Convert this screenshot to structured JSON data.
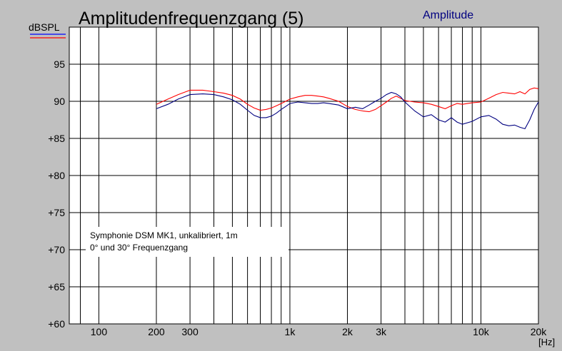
{
  "chart_data": {
    "type": "line",
    "title": "Amplitudenfrequenzgang (5)",
    "legend_label": "Amplitude",
    "ylabel": "dBSPL",
    "xlabel": "[Hz]",
    "x_scale": "log",
    "xlim": [
      70,
      20000
    ],
    "ylim": [
      60,
      100
    ],
    "y_ticks": [
      {
        "value": 95,
        "label": "95"
      },
      {
        "value": 90,
        "label": "90"
      },
      {
        "value": 85,
        "label": "+85"
      },
      {
        "value": 80,
        "label": "+80"
      },
      {
        "value": 75,
        "label": "+75"
      },
      {
        "value": 70,
        "label": "+70"
      },
      {
        "value": 65,
        "label": "+65"
      },
      {
        "value": 60,
        "label": "+60"
      }
    ],
    "x_ticks": [
      {
        "value": 100,
        "label": "100"
      },
      {
        "value": 200,
        "label": "200"
      },
      {
        "value": 300,
        "label": "300"
      },
      {
        "value": 1000,
        "label": "1k"
      },
      {
        "value": 2000,
        "label": "2k"
      },
      {
        "value": 3000,
        "label": "3k"
      },
      {
        "value": 10000,
        "label": "10k"
      },
      {
        "value": 20000,
        "label": "20k"
      }
    ],
    "x_gridlines": [
      80,
      100,
      200,
      300,
      400,
      500,
      600,
      700,
      800,
      900,
      1000,
      2000,
      3000,
      4000,
      5000,
      6000,
      7000,
      8000,
      9000,
      10000,
      20000
    ],
    "grid": true,
    "series": [
      {
        "color": "#ff0000",
        "x": [
          200,
          230,
          260,
          300,
          350,
          400,
          450,
          500,
          550,
          600,
          650,
          700,
          750,
          800,
          850,
          900,
          950,
          1000,
          1100,
          1200,
          1300,
          1400,
          1500,
          1600,
          1800,
          2000,
          2200,
          2400,
          2600,
          2800,
          3000,
          3200,
          3400,
          3600,
          3800,
          4000,
          4500,
          5000,
          5500,
          6000,
          6500,
          7000,
          7500,
          8000,
          9000,
          10000,
          11000,
          12000,
          13000,
          14000,
          15000,
          16000,
          17000,
          18000,
          19000,
          20000
        ],
        "y": [
          89.6,
          90.3,
          90.9,
          91.5,
          91.5,
          91.3,
          91.1,
          90.8,
          90.3,
          89.6,
          89.1,
          88.8,
          88.9,
          89.1,
          89.4,
          89.7,
          90.0,
          90.3,
          90.6,
          90.8,
          90.8,
          90.7,
          90.6,
          90.4,
          90.0,
          89.3,
          88.9,
          88.7,
          88.6,
          88.9,
          89.4,
          89.9,
          90.4,
          90.7,
          90.4,
          90.1,
          89.9,
          89.8,
          89.6,
          89.3,
          89.0,
          89.4,
          89.7,
          89.6,
          89.8,
          89.9,
          90.4,
          90.9,
          91.2,
          91.1,
          91.0,
          91.3,
          91.0,
          91.6,
          91.8,
          91.7
        ]
      },
      {
        "color": "#000080",
        "x": [
          200,
          230,
          260,
          300,
          350,
          400,
          450,
          500,
          550,
          600,
          650,
          700,
          750,
          800,
          850,
          900,
          950,
          1000,
          1100,
          1200,
          1300,
          1400,
          1500,
          1600,
          1800,
          2000,
          2200,
          2400,
          2600,
          2800,
          3000,
          3200,
          3400,
          3600,
          3800,
          4000,
          4500,
          5000,
          5500,
          6000,
          6500,
          7000,
          7500,
          8000,
          9000,
          10000,
          11000,
          12000,
          13000,
          14000,
          15000,
          16000,
          17000,
          18000,
          19000,
          20000
        ],
        "y": [
          89.0,
          89.6,
          90.3,
          90.9,
          91.0,
          90.9,
          90.6,
          90.2,
          89.6,
          88.8,
          88.1,
          87.8,
          87.8,
          88.0,
          88.4,
          88.9,
          89.3,
          89.7,
          89.9,
          89.8,
          89.7,
          89.7,
          89.8,
          89.7,
          89.5,
          89.0,
          89.2,
          89.0,
          89.5,
          90.0,
          90.4,
          90.9,
          91.2,
          91.0,
          90.6,
          89.9,
          88.7,
          87.9,
          88.2,
          87.5,
          87.2,
          87.8,
          87.2,
          86.9,
          87.3,
          87.9,
          88.1,
          87.6,
          86.9,
          86.7,
          86.8,
          86.5,
          86.3,
          87.5,
          88.9,
          89.9
        ]
      }
    ],
    "legend_swatches": [
      "#0000ff",
      "#ff0000"
    ],
    "annotation": {
      "line1": "Symphonie DSM MK1, unkalibriert, 1m",
      "line2": "0° und 30° Frequenzgang"
    }
  }
}
